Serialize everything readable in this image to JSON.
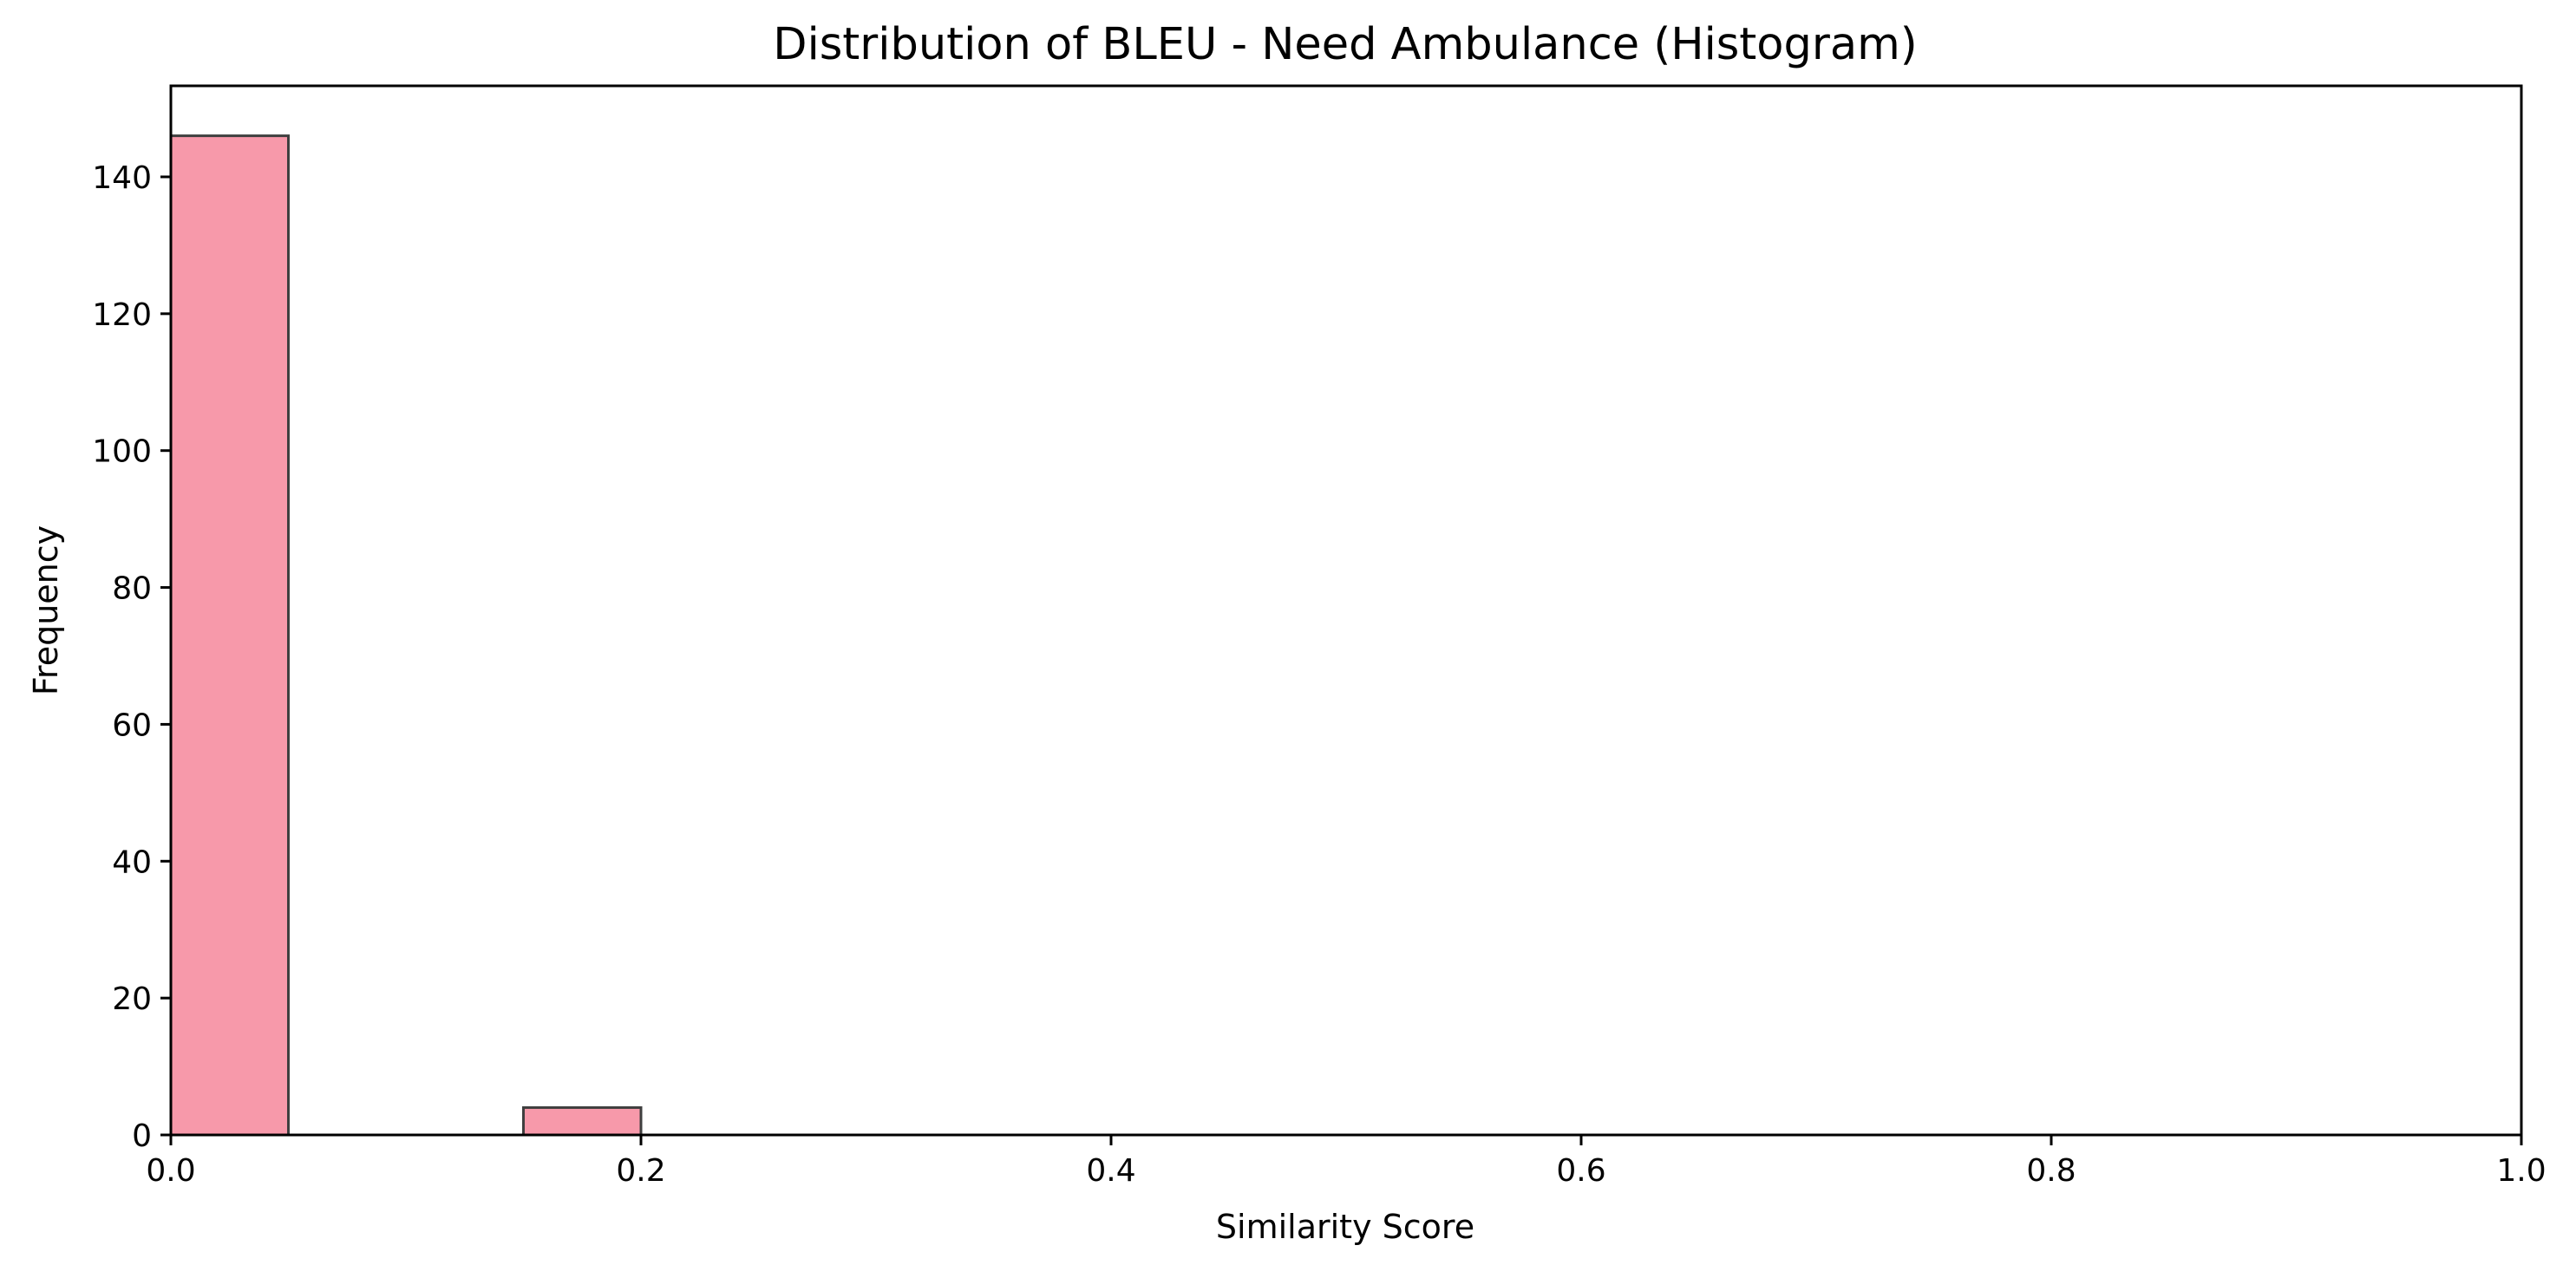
{
  "chart_data": {
    "type": "bar",
    "title": "Distribution of BLEU - Need Ambulance (Histogram)",
    "xlabel": "Similarity Score",
    "ylabel": "Frequency",
    "xlim": [
      0.0,
      1.0
    ],
    "ylim": [
      0,
      153.3
    ],
    "grid": false,
    "x_ticks": [
      0.0,
      0.2,
      0.4,
      0.6,
      0.8,
      1.0
    ],
    "x_tick_labels": [
      "0.0",
      "0.2",
      "0.4",
      "0.6",
      "0.8",
      "1.0"
    ],
    "y_ticks": [
      0,
      20,
      40,
      60,
      80,
      100,
      120,
      140
    ],
    "y_tick_labels": [
      "0",
      "20",
      "40",
      "60",
      "80",
      "100",
      "120",
      "140"
    ],
    "bins": [
      {
        "x0": 0.0,
        "x1": 0.05,
        "count": 146
      },
      {
        "x0": 0.15,
        "x1": 0.2,
        "count": 4
      }
    ],
    "bar_color": "#f799aa",
    "bar_edge_color": "#3f3f3f"
  }
}
